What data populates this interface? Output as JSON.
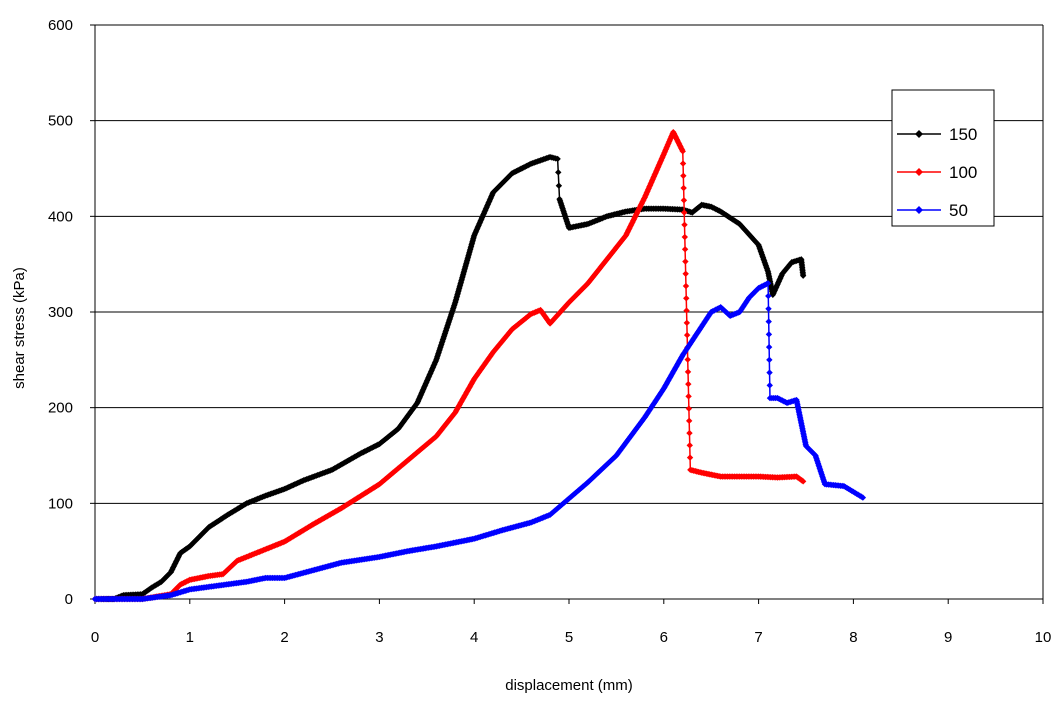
{
  "chart_data": {
    "type": "line",
    "title": "",
    "xlabel": "displacement (mm)",
    "ylabel": "shear stress (kPa)",
    "xlim": [
      0,
      10
    ],
    "ylim": [
      0,
      600
    ],
    "xticks": [
      "0",
      "1",
      "2",
      "3",
      "4",
      "5",
      "6",
      "7",
      "8",
      "9",
      "10"
    ],
    "yticks": [
      "0",
      "100",
      "200",
      "300",
      "400",
      "500",
      "600"
    ],
    "grid": "horizontal",
    "legend_position": "top-right",
    "series": [
      {
        "name": "150",
        "color": "#000000",
        "points": [
          [
            0,
            0
          ],
          [
            0.2,
            0
          ],
          [
            0.3,
            4
          ],
          [
            0.5,
            5
          ],
          [
            0.6,
            12
          ],
          [
            0.7,
            18
          ],
          [
            0.8,
            28
          ],
          [
            0.9,
            48
          ],
          [
            1.0,
            55
          ],
          [
            1.2,
            75
          ],
          [
            1.4,
            88
          ],
          [
            1.6,
            100
          ],
          [
            1.8,
            108
          ],
          [
            2.0,
            115
          ],
          [
            2.2,
            124
          ],
          [
            2.5,
            135
          ],
          [
            2.8,
            152
          ],
          [
            3.0,
            162
          ],
          [
            3.2,
            178
          ],
          [
            3.4,
            205
          ],
          [
            3.6,
            250
          ],
          [
            3.8,
            310
          ],
          [
            4.0,
            380
          ],
          [
            4.2,
            425
          ],
          [
            4.4,
            445
          ],
          [
            4.6,
            455
          ],
          [
            4.8,
            462
          ],
          [
            4.88,
            460
          ],
          [
            4.9,
            418
          ],
          [
            5.0,
            388
          ],
          [
            5.2,
            392
          ],
          [
            5.4,
            400
          ],
          [
            5.6,
            405
          ],
          [
            5.8,
            408
          ],
          [
            6.0,
            408
          ],
          [
            6.2,
            407
          ],
          [
            6.3,
            404
          ],
          [
            6.4,
            412
          ],
          [
            6.5,
            410
          ],
          [
            6.6,
            405
          ],
          [
            6.8,
            392
          ],
          [
            7.0,
            370
          ],
          [
            7.1,
            342
          ],
          [
            7.15,
            318
          ],
          [
            7.25,
            340
          ],
          [
            7.35,
            352
          ],
          [
            7.45,
            355
          ],
          [
            7.47,
            338
          ]
        ]
      },
      {
        "name": "100",
        "color": "#ff0000",
        "points": [
          [
            0,
            0
          ],
          [
            0.5,
            0
          ],
          [
            0.8,
            5
          ],
          [
            0.9,
            15
          ],
          [
            1.0,
            20
          ],
          [
            1.2,
            24
          ],
          [
            1.35,
            26
          ],
          [
            1.5,
            40
          ],
          [
            1.7,
            48
          ],
          [
            2.0,
            60
          ],
          [
            2.3,
            78
          ],
          [
            2.6,
            95
          ],
          [
            3.0,
            120
          ],
          [
            3.3,
            145
          ],
          [
            3.6,
            170
          ],
          [
            3.8,
            195
          ],
          [
            4.0,
            230
          ],
          [
            4.2,
            258
          ],
          [
            4.4,
            282
          ],
          [
            4.6,
            298
          ],
          [
            4.7,
            302
          ],
          [
            4.8,
            288
          ],
          [
            5.0,
            310
          ],
          [
            5.2,
            330
          ],
          [
            5.4,
            355
          ],
          [
            5.6,
            380
          ],
          [
            5.8,
            420
          ],
          [
            6.0,
            465
          ],
          [
            6.1,
            488
          ],
          [
            6.2,
            468
          ],
          [
            6.28,
            135
          ],
          [
            6.4,
            132
          ],
          [
            6.6,
            128
          ],
          [
            6.8,
            128
          ],
          [
            7.0,
            128
          ],
          [
            7.2,
            127
          ],
          [
            7.4,
            128
          ],
          [
            7.47,
            123
          ]
        ]
      },
      {
        "name": "50",
        "color": "#0000ff",
        "points": [
          [
            0,
            0
          ],
          [
            0.5,
            0
          ],
          [
            0.8,
            4
          ],
          [
            1.0,
            10
          ],
          [
            1.3,
            14
          ],
          [
            1.6,
            18
          ],
          [
            1.8,
            22
          ],
          [
            2.0,
            22
          ],
          [
            2.3,
            30
          ],
          [
            2.6,
            38
          ],
          [
            3.0,
            44
          ],
          [
            3.3,
            50
          ],
          [
            3.6,
            55
          ],
          [
            4.0,
            63
          ],
          [
            4.3,
            72
          ],
          [
            4.6,
            80
          ],
          [
            4.8,
            88
          ],
          [
            5.0,
            105
          ],
          [
            5.2,
            122
          ],
          [
            5.5,
            150
          ],
          [
            5.8,
            190
          ],
          [
            6.0,
            220
          ],
          [
            6.2,
            255
          ],
          [
            6.4,
            285
          ],
          [
            6.5,
            300
          ],
          [
            6.6,
            305
          ],
          [
            6.7,
            296
          ],
          [
            6.8,
            300
          ],
          [
            6.9,
            315
          ],
          [
            7.0,
            325
          ],
          [
            7.1,
            330
          ],
          [
            7.12,
            210
          ],
          [
            7.2,
            210
          ],
          [
            7.3,
            205
          ],
          [
            7.4,
            208
          ],
          [
            7.5,
            160
          ],
          [
            7.6,
            150
          ],
          [
            7.7,
            120
          ],
          [
            7.9,
            118
          ],
          [
            8.0,
            112
          ],
          [
            8.1,
            106
          ]
        ]
      }
    ]
  }
}
